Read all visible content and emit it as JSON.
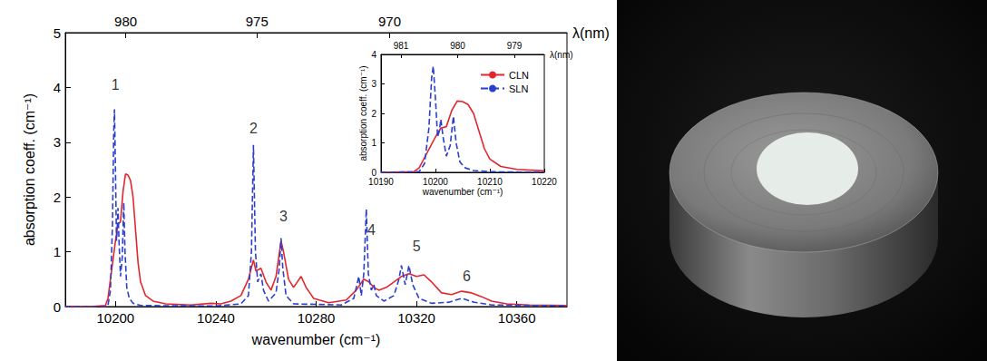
{
  "chart_data": [
    {
      "type": "line",
      "x_label": "wavenumber (cm⁻¹)",
      "y_label": "absorption coeff. (cm⁻¹)",
      "x2_label": "λ(nm)",
      "xlim": [
        10180,
        10380
      ],
      "xticks": [
        10200,
        10240,
        10280,
        10320,
        10360
      ],
      "x2ticks": [
        {
          "value": 10204.08,
          "label": "980"
        },
        {
          "value": 10256.41,
          "label": "975"
        },
        {
          "value": 10309.28,
          "label": "970"
        }
      ],
      "ylim": [
        0,
        5
      ],
      "yticks": [
        0,
        1,
        2,
        3,
        4,
        5
      ],
      "grid": false,
      "series": [
        {
          "name": "CLN",
          "color": "#e3262d",
          "line_style": "solid",
          "x": [
            10180,
            10190,
            10196,
            10197,
            10198,
            10199,
            10200,
            10201,
            10202,
            10203,
            10204,
            10205,
            10206,
            10207,
            10208,
            10209,
            10210,
            10212,
            10215,
            10220,
            10230,
            10238,
            10242,
            10246,
            10250,
            10253,
            10255,
            10256,
            10258,
            10260,
            10262,
            10264,
            10266,
            10267,
            10269,
            10271,
            10274,
            10276,
            10279,
            10285,
            10292,
            10296,
            10299,
            10301,
            10303,
            10305,
            10308,
            10311,
            10314,
            10317,
            10320,
            10323,
            10326,
            10330,
            10334,
            10338,
            10342,
            10346,
            10350,
            10356,
            10365,
            10380
          ],
          "values": [
            0,
            0,
            0.02,
            0.15,
            0.5,
            0.85,
            1.2,
            1.5,
            1.55,
            2.1,
            2.42,
            2.4,
            2.3,
            2.0,
            1.4,
            0.8,
            0.45,
            0.2,
            0.1,
            0.05,
            0.03,
            0.06,
            0.05,
            0.1,
            0.2,
            0.5,
            0.85,
            0.65,
            0.7,
            0.45,
            0.3,
            0.55,
            1.2,
            1.0,
            0.5,
            0.35,
            0.55,
            0.35,
            0.15,
            0.07,
            0.12,
            0.3,
            0.5,
            0.45,
            0.35,
            0.3,
            0.35,
            0.45,
            0.55,
            0.6,
            0.55,
            0.58,
            0.45,
            0.25,
            0.22,
            0.28,
            0.25,
            0.18,
            0.1,
            0.05,
            0.03,
            0.02
          ]
        },
        {
          "name": "SLN",
          "color": "#2a3fcf",
          "line_style": "dashed",
          "x": [
            10180,
            10196,
            10197,
            10198,
            10198.8,
            10199.3,
            10199.6,
            10200,
            10200.4,
            10200.7,
            10201,
            10201.4,
            10202,
            10202.7,
            10203.3,
            10203.8,
            10204.5,
            10205.5,
            10207,
            10210,
            10240,
            10250,
            10253,
            10254.2,
            10255,
            10255.8,
            10256.7,
            10258,
            10259,
            10261,
            10264,
            10265.3,
            10266,
            10266.7,
            10268,
            10271,
            10290,
            10295,
            10297,
            10298,
            10299,
            10300,
            10300.8,
            10302,
            10303,
            10304,
            10307,
            10311,
            10313,
            10314,
            10315.5,
            10317,
            10318.5,
            10321,
            10326,
            10333,
            10338,
            10343,
            10350,
            10380
          ],
          "values": [
            0,
            0,
            0.02,
            0.3,
            1.5,
            3.2,
            3.6,
            2.5,
            1.2,
            1.4,
            1.8,
            1.2,
            0.55,
            0.9,
            1.9,
            1.0,
            0.35,
            0.15,
            0.06,
            0.02,
            0.01,
            0.05,
            0.2,
            1.0,
            2.95,
            1.0,
            0.45,
            0.6,
            0.3,
            0.1,
            0.25,
            0.7,
            1.25,
            0.7,
            0.2,
            0.05,
            0.03,
            0.15,
            0.55,
            0.2,
            0.6,
            1.78,
            0.6,
            0.3,
            0.4,
            0.2,
            0.1,
            0.2,
            0.5,
            0.75,
            0.4,
            0.75,
            0.4,
            0.15,
            0.06,
            0.08,
            0.15,
            0.08,
            0.03,
            0.01
          ]
        }
      ],
      "annotations": [
        {
          "text": "1",
          "x": 10200,
          "y": 4.05
        },
        {
          "text": "2",
          "x": 10255,
          "y": 3.25
        },
        {
          "text": "3",
          "x": 10267,
          "y": 1.65
        },
        {
          "text": "4",
          "x": 10302,
          "y": 1.4
        },
        {
          "text": "5",
          "x": 10320,
          "y": 1.1
        },
        {
          "text": "6",
          "x": 10340,
          "y": 0.55
        }
      ]
    },
    {
      "type": "line",
      "x_label": "wavenumber (cm⁻¹)",
      "y_label": "absorption coeff. (cm⁻¹)",
      "x2_label": "λ(nm)",
      "xlim": [
        10190,
        10220
      ],
      "xticks": [
        10190,
        10200,
        10210,
        10220
      ],
      "x2ticks": [
        {
          "value": 10193.68,
          "label": "981"
        },
        {
          "value": 10204.08,
          "label": "980"
        },
        {
          "value": 10214.5,
          "label": "979"
        }
      ],
      "ylim": [
        0,
        4
      ],
      "yticks": [
        0,
        1,
        2,
        3,
        4
      ],
      "grid": false,
      "legend": "upper right",
      "series": [
        {
          "name": "CLN",
          "color": "#e3262d",
          "line_style": "solid",
          "x": [
            10190,
            10196,
            10197,
            10198,
            10199,
            10200,
            10201,
            10202,
            10203,
            10204,
            10205,
            10206,
            10207,
            10208,
            10209,
            10210,
            10212,
            10215,
            10220
          ],
          "values": [
            0,
            0.02,
            0.15,
            0.5,
            0.85,
            1.2,
            1.5,
            1.55,
            2.1,
            2.42,
            2.4,
            2.3,
            2.0,
            1.4,
            0.8,
            0.45,
            0.2,
            0.1,
            0.05
          ]
        },
        {
          "name": "SLN",
          "color": "#2a3fcf",
          "line_style": "dashed",
          "x": [
            10190,
            10197,
            10198,
            10198.8,
            10199.3,
            10199.6,
            10200,
            10200.4,
            10200.7,
            10201,
            10201.4,
            10202,
            10202.7,
            10203.3,
            10203.8,
            10204.5,
            10205.5,
            10207,
            10210,
            10220
          ],
          "values": [
            0,
            0.02,
            0.3,
            1.5,
            3.2,
            3.6,
            2.5,
            1.2,
            1.4,
            1.8,
            1.2,
            0.55,
            0.9,
            1.9,
            1.0,
            0.35,
            0.15,
            0.06,
            0.02,
            0
          ]
        }
      ]
    }
  ]
}
